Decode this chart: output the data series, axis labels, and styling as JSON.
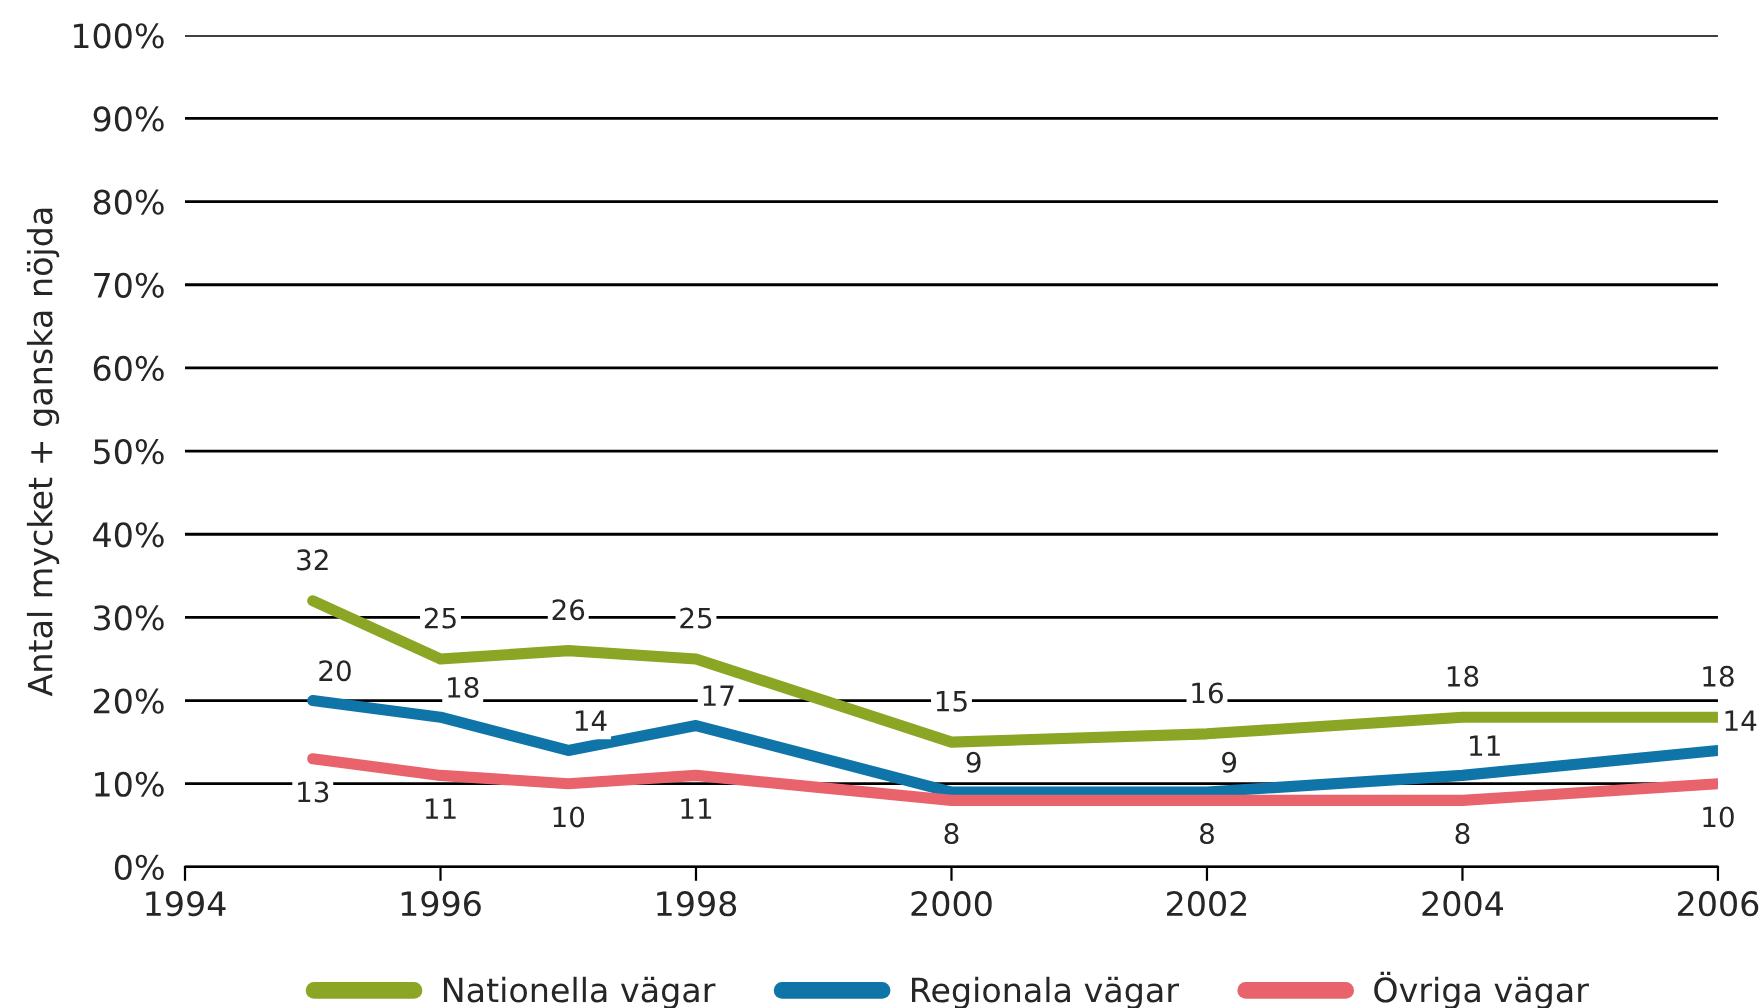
{
  "chart_data": {
    "type": "line",
    "ylabel": "Antal mycket + ganska nöjda",
    "x": [
      1995,
      1996,
      1997,
      1998,
      2000,
      2002,
      2004,
      2006
    ],
    "series": [
      {
        "name": "Nationella vägar",
        "color": "#8aa624",
        "values": [
          32,
          25,
          26,
          25,
          15,
          16,
          18,
          18
        ]
      },
      {
        "name": "Regionala vägar",
        "color": "#0f75a8",
        "values": [
          20,
          18,
          14,
          17,
          9,
          9,
          11,
          14
        ]
      },
      {
        "name": "Övriga vägar",
        "color": "#e8636c",
        "values": [
          13,
          11,
          10,
          11,
          8,
          8,
          8,
          10
        ]
      }
    ],
    "data_labels": true,
    "xlim": [
      1994,
      2006
    ],
    "xticks": [
      1994,
      1996,
      1998,
      2000,
      2002,
      2004,
      2006
    ],
    "ylim": [
      0,
      100
    ],
    "yticks": [
      {
        "value": 0,
        "label": "0%"
      },
      {
        "value": 10,
        "label": "10%"
      },
      {
        "value": 20,
        "label": "20%"
      },
      {
        "value": 30,
        "label": "30%"
      },
      {
        "value": 40,
        "label": "40%"
      },
      {
        "value": 50,
        "label": "50%"
      },
      {
        "value": 60,
        "label": "60%"
      },
      {
        "value": 70,
        "label": "70%"
      },
      {
        "value": 80,
        "label": "80%"
      },
      {
        "value": 90,
        "label": "90%"
      },
      {
        "value": 100,
        "label": "100%"
      }
    ],
    "grid": "y",
    "legend": "bottom",
    "marker": "none",
    "line_style": "solid"
  }
}
